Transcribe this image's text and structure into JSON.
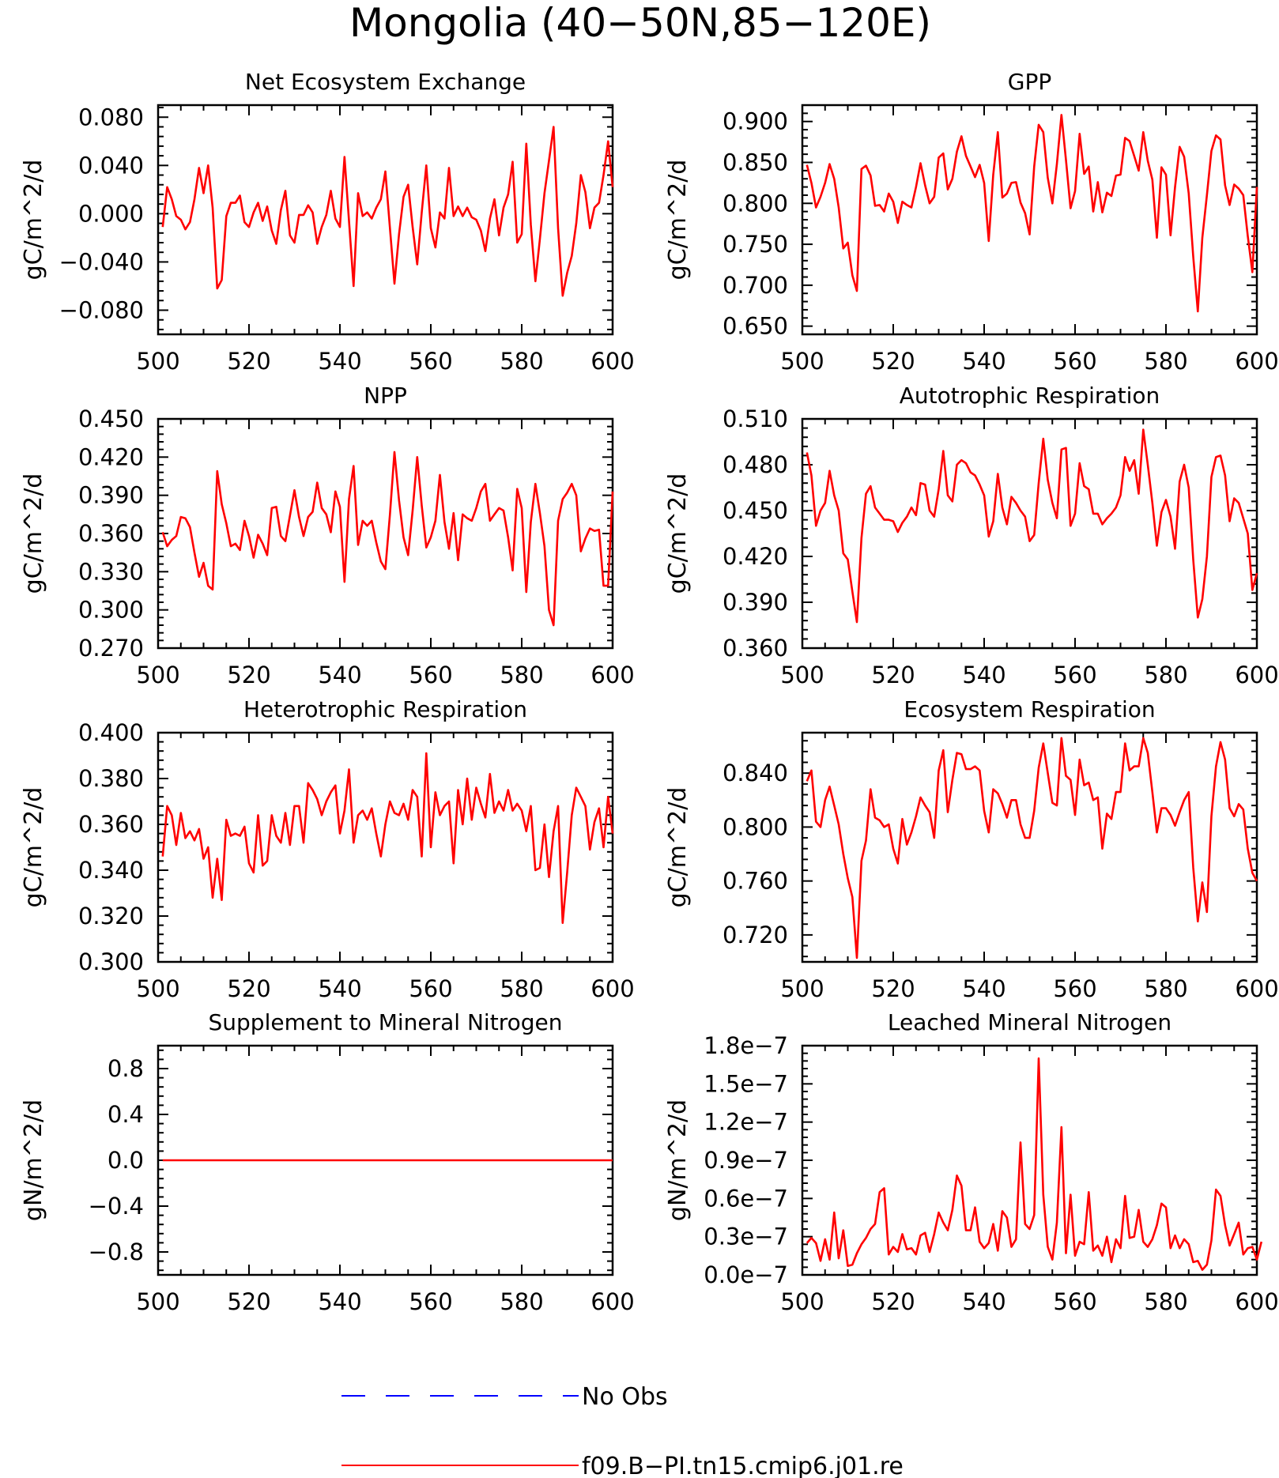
{
  "figure": {
    "title": "Mongolia (40−50N,85−120E)"
  },
  "legend": {
    "placement": "bottom-center",
    "entries": [
      {
        "label": "No Obs",
        "color": "#0000ff",
        "style": "dashed"
      },
      {
        "label": "f09.B−PI.tn15.cmip6.j01.re",
        "color": "#ff0000",
        "style": "solid"
      }
    ]
  },
  "chart_data": [
    {
      "type": "line",
      "title": "Net Ecosystem Exchange",
      "xlabel": "",
      "ylabel": "gC/m^2/d",
      "xlim": [
        500,
        600
      ],
      "ylim": [
        -0.1,
        0.09
      ],
      "xticks": [
        500,
        520,
        540,
        560,
        580,
        600
      ],
      "yticks": [
        -0.08,
        -0.04,
        0,
        0.04,
        0.08
      ],
      "yticklabels": [
        "−0.080",
        "−0.040",
        "0.000",
        "0.040",
        "0.080"
      ],
      "series": [
        {
          "name": "f09.B−PI.tn15.cmip6.j01.re",
          "color": "#ff0000",
          "x_start": 501,
          "x_step": 1,
          "values": [
            -0.011,
            0.022,
            0.012,
            -0.002,
            -0.005,
            -0.013,
            -0.007,
            0.012,
            0.038,
            0.017,
            0.04,
            0.005,
            -0.062,
            -0.055,
            -0.002,
            0.009,
            0.009,
            0.015,
            -0.007,
            -0.011,
            0.001,
            0.009,
            -0.006,
            0.006,
            -0.014,
            -0.025,
            0.003,
            0.019,
            -0.018,
            -0.024,
            -0.001,
            -0.001,
            0.007,
            0.001,
            -0.025,
            -0.011,
            -0.001,
            0.019,
            -0.004,
            -0.011,
            0.047,
            -0.006,
            -0.06,
            0.017,
            -0.002,
            0.001,
            -0.004,
            0.005,
            0.012,
            0.035,
            -0.012,
            -0.058,
            -0.017,
            0.014,
            0.024,
            -0.011,
            -0.042,
            0.001,
            0.04,
            -0.012,
            -0.028,
            0.001,
            -0.004,
            0.038,
            -0.002,
            0.006,
            -0.002,
            0.005,
            -0.003,
            -0.005,
            -0.014,
            -0.031,
            -0.004,
            0.012,
            -0.018,
            0.005,
            0.016,
            0.043,
            -0.024,
            -0.017,
            0.058,
            -0.009,
            -0.056,
            -0.021,
            0.017,
            0.044,
            0.072,
            -0.012,
            -0.068,
            -0.049,
            -0.035,
            -0.008,
            0.032,
            0.018,
            -0.012,
            0.005,
            0.009,
            0.032,
            0.06,
            0.022
          ]
        }
      ]
    },
    {
      "type": "line",
      "title": "GPP",
      "xlabel": "",
      "ylabel": "gC/m^2/d",
      "xlim": [
        500,
        600
      ],
      "ylim": [
        0.64,
        0.92
      ],
      "xticks": [
        500,
        520,
        540,
        560,
        580,
        600
      ],
      "yticks": [
        0.65,
        0.7,
        0.75,
        0.8,
        0.85,
        0.9
      ],
      "yticklabels": [
        "0.650",
        "0.700",
        "0.750",
        "0.800",
        "0.850",
        "0.900"
      ],
      "series": [
        {
          "name": "f09.B−PI.tn15.cmip6.j01.re",
          "color": "#ff0000",
          "x_start": 501,
          "x_step": 1,
          "values": [
            0.847,
            0.825,
            0.795,
            0.808,
            0.825,
            0.848,
            0.83,
            0.795,
            0.745,
            0.752,
            0.712,
            0.693,
            0.842,
            0.846,
            0.834,
            0.797,
            0.798,
            0.79,
            0.812,
            0.802,
            0.776,
            0.802,
            0.798,
            0.795,
            0.82,
            0.849,
            0.822,
            0.8,
            0.808,
            0.856,
            0.861,
            0.817,
            0.83,
            0.863,
            0.882,
            0.858,
            0.845,
            0.832,
            0.847,
            0.825,
            0.754,
            0.835,
            0.887,
            0.807,
            0.812,
            0.825,
            0.826,
            0.801,
            0.788,
            0.762,
            0.845,
            0.896,
            0.887,
            0.831,
            0.8,
            0.848,
            0.908,
            0.853,
            0.794,
            0.815,
            0.885,
            0.836,
            0.845,
            0.79,
            0.826,
            0.789,
            0.813,
            0.809,
            0.834,
            0.835,
            0.88,
            0.876,
            0.858,
            0.84,
            0.887,
            0.852,
            0.829,
            0.758,
            0.844,
            0.835,
            0.761,
            0.82,
            0.869,
            0.857,
            0.812,
            0.735,
            0.668,
            0.758,
            0.81,
            0.864,
            0.883,
            0.878,
            0.822,
            0.798,
            0.823,
            0.818,
            0.81,
            0.76,
            0.716,
            0.82
          ]
        }
      ]
    },
    {
      "type": "line",
      "title": "NPP",
      "xlabel": "",
      "ylabel": "gC/m^2/d",
      "xlim": [
        500,
        600
      ],
      "ylim": [
        0.27,
        0.45
      ],
      "xticks": [
        500,
        520,
        540,
        560,
        580,
        600
      ],
      "yticks": [
        0.27,
        0.3,
        0.33,
        0.36,
        0.39,
        0.42,
        0.45
      ],
      "yticklabels": [
        "0.270",
        "0.300",
        "0.330",
        "0.360",
        "0.390",
        "0.420",
        "0.450"
      ],
      "series": [
        {
          "name": "f09.B−PI.tn15.cmip6.j01.re",
          "color": "#ff0000",
          "x_start": 501,
          "x_step": 1,
          "values": [
            0.361,
            0.35,
            0.355,
            0.358,
            0.373,
            0.372,
            0.365,
            0.345,
            0.326,
            0.337,
            0.319,
            0.316,
            0.409,
            0.383,
            0.368,
            0.35,
            0.352,
            0.347,
            0.37,
            0.358,
            0.341,
            0.359,
            0.352,
            0.343,
            0.38,
            0.381,
            0.358,
            0.354,
            0.374,
            0.394,
            0.373,
            0.358,
            0.373,
            0.377,
            0.4,
            0.38,
            0.375,
            0.361,
            0.393,
            0.381,
            0.322,
            0.387,
            0.413,
            0.351,
            0.37,
            0.366,
            0.37,
            0.353,
            0.338,
            0.332,
            0.375,
            0.424,
            0.386,
            0.357,
            0.343,
            0.378,
            0.42,
            0.382,
            0.349,
            0.357,
            0.37,
            0.406,
            0.369,
            0.348,
            0.376,
            0.339,
            0.375,
            0.372,
            0.37,
            0.38,
            0.393,
            0.399,
            0.37,
            0.375,
            0.38,
            0.378,
            0.357,
            0.331,
            0.395,
            0.38,
            0.314,
            0.369,
            0.399,
            0.376,
            0.35,
            0.3,
            0.288,
            0.37,
            0.387,
            0.392,
            0.399,
            0.39,
            0.346,
            0.356,
            0.364,
            0.362,
            0.363,
            0.319,
            0.319,
            0.393
          ]
        }
      ]
    },
    {
      "type": "line",
      "title": "Autotrophic Respiration",
      "xlabel": "",
      "ylabel": "gC/m^2/d",
      "xlim": [
        500,
        600
      ],
      "ylim": [
        0.36,
        0.51
      ],
      "xticks": [
        500,
        520,
        540,
        560,
        580,
        600
      ],
      "yticks": [
        0.36,
        0.39,
        0.42,
        0.45,
        0.48,
        0.51
      ],
      "yticklabels": [
        "0.360",
        "0.390",
        "0.420",
        "0.450",
        "0.480",
        "0.510"
      ],
      "series": [
        {
          "name": "f09.B−PI.tn15.cmip6.j01.re",
          "color": "#ff0000",
          "x_start": 501,
          "x_step": 1,
          "values": [
            0.488,
            0.473,
            0.44,
            0.45,
            0.455,
            0.476,
            0.46,
            0.45,
            0.422,
            0.418,
            0.397,
            0.377,
            0.432,
            0.461,
            0.466,
            0.452,
            0.448,
            0.444,
            0.444,
            0.443,
            0.436,
            0.442,
            0.446,
            0.452,
            0.447,
            0.468,
            0.467,
            0.45,
            0.446,
            0.464,
            0.489,
            0.46,
            0.456,
            0.48,
            0.483,
            0.481,
            0.475,
            0.473,
            0.467,
            0.46,
            0.433,
            0.443,
            0.474,
            0.452,
            0.441,
            0.459,
            0.455,
            0.45,
            0.446,
            0.43,
            0.434,
            0.468,
            0.497,
            0.47,
            0.455,
            0.445,
            0.49,
            0.491,
            0.44,
            0.448,
            0.481,
            0.466,
            0.464,
            0.448,
            0.448,
            0.441,
            0.445,
            0.448,
            0.452,
            0.46,
            0.485,
            0.476,
            0.483,
            0.461,
            0.503,
            0.48,
            0.455,
            0.427,
            0.449,
            0.457,
            0.446,
            0.425,
            0.469,
            0.48,
            0.465,
            0.418,
            0.38,
            0.392,
            0.42,
            0.472,
            0.485,
            0.486,
            0.473,
            0.443,
            0.458,
            0.455,
            0.445,
            0.435,
            0.398,
            0.409
          ]
        }
      ]
    },
    {
      "type": "line",
      "title": "Heterotrophic Respiration",
      "xlabel": "",
      "ylabel": "gC/m^2/d",
      "xlim": [
        500,
        600
      ],
      "ylim": [
        0.3,
        0.4
      ],
      "xticks": [
        500,
        520,
        540,
        560,
        580,
        600
      ],
      "yticks": [
        0.3,
        0.32,
        0.34,
        0.36,
        0.38,
        0.4
      ],
      "yticklabels": [
        "0.300",
        "0.320",
        "0.340",
        "0.360",
        "0.380",
        "0.400"
      ],
      "series": [
        {
          "name": "f09.B−PI.tn15.cmip6.j01.re",
          "color": "#ff0000",
          "x_start": 501,
          "x_step": 1,
          "values": [
            0.346,
            0.368,
            0.364,
            0.351,
            0.365,
            0.354,
            0.357,
            0.353,
            0.358,
            0.345,
            0.35,
            0.328,
            0.345,
            0.327,
            0.362,
            0.355,
            0.356,
            0.355,
            0.359,
            0.343,
            0.339,
            0.364,
            0.342,
            0.344,
            0.364,
            0.355,
            0.352,
            0.365,
            0.351,
            0.368,
            0.368,
            0.352,
            0.378,
            0.375,
            0.371,
            0.364,
            0.37,
            0.374,
            0.377,
            0.356,
            0.366,
            0.384,
            0.352,
            0.364,
            0.366,
            0.362,
            0.367,
            0.356,
            0.346,
            0.36,
            0.37,
            0.365,
            0.364,
            0.369,
            0.362,
            0.375,
            0.372,
            0.346,
            0.391,
            0.35,
            0.374,
            0.364,
            0.368,
            0.37,
            0.343,
            0.375,
            0.36,
            0.38,
            0.362,
            0.376,
            0.369,
            0.363,
            0.382,
            0.365,
            0.37,
            0.366,
            0.375,
            0.366,
            0.369,
            0.366,
            0.357,
            0.368,
            0.34,
            0.341,
            0.36,
            0.337,
            0.357,
            0.368,
            0.317,
            0.339,
            0.364,
            0.376,
            0.372,
            0.368,
            0.349,
            0.361,
            0.367,
            0.35,
            0.372,
            0.356
          ]
        }
      ]
    },
    {
      "type": "line",
      "title": "Ecosystem Respiration",
      "xlabel": "",
      "ylabel": "gC/m^2/d",
      "xlim": [
        500,
        600
      ],
      "ylim": [
        0.7,
        0.87
      ],
      "xticks": [
        500,
        520,
        540,
        560,
        580,
        600
      ],
      "yticks": [
        0.72,
        0.76,
        0.8,
        0.84
      ],
      "yticklabels": [
        "0.720",
        "0.760",
        "0.800",
        "0.840"
      ],
      "series": [
        {
          "name": "f09.B−PI.tn15.cmip6.j01.re",
          "color": "#ff0000",
          "x_start": 501,
          "x_step": 1,
          "values": [
            0.834,
            0.842,
            0.804,
            0.8,
            0.82,
            0.83,
            0.816,
            0.802,
            0.78,
            0.762,
            0.748,
            0.703,
            0.775,
            0.79,
            0.828,
            0.807,
            0.805,
            0.8,
            0.802,
            0.784,
            0.773,
            0.806,
            0.787,
            0.796,
            0.808,
            0.822,
            0.816,
            0.811,
            0.792,
            0.842,
            0.857,
            0.811,
            0.835,
            0.855,
            0.854,
            0.843,
            0.843,
            0.845,
            0.842,
            0.812,
            0.796,
            0.828,
            0.825,
            0.817,
            0.807,
            0.82,
            0.82,
            0.802,
            0.792,
            0.792,
            0.812,
            0.844,
            0.862,
            0.84,
            0.818,
            0.816,
            0.866,
            0.838,
            0.835,
            0.809,
            0.85,
            0.831,
            0.833,
            0.82,
            0.822,
            0.784,
            0.81,
            0.806,
            0.826,
            0.826,
            0.862,
            0.842,
            0.845,
            0.845,
            0.866,
            0.855,
            0.826,
            0.796,
            0.814,
            0.814,
            0.809,
            0.801,
            0.811,
            0.82,
            0.826,
            0.77,
            0.73,
            0.759,
            0.737,
            0.808,
            0.845,
            0.863,
            0.85,
            0.814,
            0.808,
            0.817,
            0.813,
            0.784,
            0.766,
            0.76
          ]
        }
      ]
    },
    {
      "type": "line",
      "title": "Supplement to Mineral Nitrogen",
      "xlabel": "",
      "ylabel": "gN/m^2/d",
      "xlim": [
        500,
        600
      ],
      "ylim": [
        -1.0,
        1.0
      ],
      "xticks": [
        500,
        520,
        540,
        560,
        580,
        600
      ],
      "yticks": [
        -0.8,
        -0.4,
        0,
        0.4,
        0.8
      ],
      "yticklabels": [
        "−0.8",
        "−0.4",
        "0.0",
        "0.4",
        "0.8"
      ],
      "series": [
        {
          "name": "f09.B−PI.tn15.cmip6.j01.re",
          "color": "#ff0000",
          "x_start": 501,
          "x_step": 1,
          "constant_value": 0,
          "count": 100
        }
      ]
    },
    {
      "type": "line",
      "title": "Leached Mineral Nitrogen",
      "xlabel": "",
      "ylabel": "gN/m^2/d",
      "xlim": [
        500,
        600
      ],
      "ylim": [
        0,
        1.8e-07
      ],
      "xticks": [
        500,
        520,
        540,
        560,
        580,
        600
      ],
      "yticks": [
        0,
        3e-08,
        6e-08,
        9e-08,
        1.2e-07,
        1.5e-07,
        1.8e-07
      ],
      "yticklabels": [
        "0.0e−7",
        "0.3e−7",
        "0.6e−7",
        "0.9e−7",
        "1.2e−7",
        "1.5e−7",
        "1.8e−7"
      ],
      "series": [
        {
          "name": "f09.B−PI.tn15.cmip6.j01.re",
          "color": "#ff0000",
          "x_start": 501,
          "x_step": 1,
          "values": [
            2.5e-08,
            2.9e-08,
            2.5e-08,
            1.1e-08,
            2.8e-08,
            1.2e-08,
            4.9e-08,
            1.3e-08,
            3.5e-08,
            7e-09,
            8e-09,
            1.7e-08,
            2.4e-08,
            2.9e-08,
            3.6e-08,
            4e-08,
            6.5e-08,
            6.8e-08,
            1.6e-08,
            2.2e-08,
            1.8e-08,
            3.2e-08,
            2e-08,
            2.1e-08,
            1.6e-08,
            3.1e-08,
            3.3e-08,
            1.8e-08,
            3.2e-08,
            4.9e-08,
            4.1e-08,
            3.5e-08,
            5.1e-08,
            7.8e-08,
            7e-08,
            3.5e-08,
            3.5e-08,
            5.3e-08,
            2.6e-08,
            2.1e-08,
            2.5e-08,
            4e-08,
            1.9e-08,
            5e-08,
            4.5e-08,
            2.2e-08,
            2.8e-08,
            1.04e-07,
            4e-08,
            3.6e-08,
            4.7e-08,
            1.7e-07,
            6.3e-08,
            2.2e-08,
            1.2e-08,
            4.1e-08,
            1.16e-07,
            1.7e-08,
            6.3e-08,
            1.5e-08,
            2.6e-08,
            2.4e-08,
            6.5e-08,
            1.9e-08,
            2.3e-08,
            1.5e-08,
            3e-08,
            1e-08,
            2.8e-08,
            2.1e-08,
            6.2e-08,
            2.9e-08,
            3e-08,
            5.1e-08,
            2.6e-08,
            2.2e-08,
            2.8e-08,
            3.9e-08,
            5.6e-08,
            5.3e-08,
            2.1e-08,
            3.1e-08,
            2.1e-08,
            2.8e-08,
            2.4e-08,
            1e-08,
            1.1e-08,
            4e-09,
            8e-09,
            2.7e-08,
            6.7e-08,
            6.2e-08,
            3.9e-08,
            2.3e-08,
            3.2e-08,
            4.1e-08,
            1.6e-08,
            2.1e-08,
            2.2e-08,
            1.2e-08,
            2.6e-08
          ]
        }
      ]
    }
  ]
}
